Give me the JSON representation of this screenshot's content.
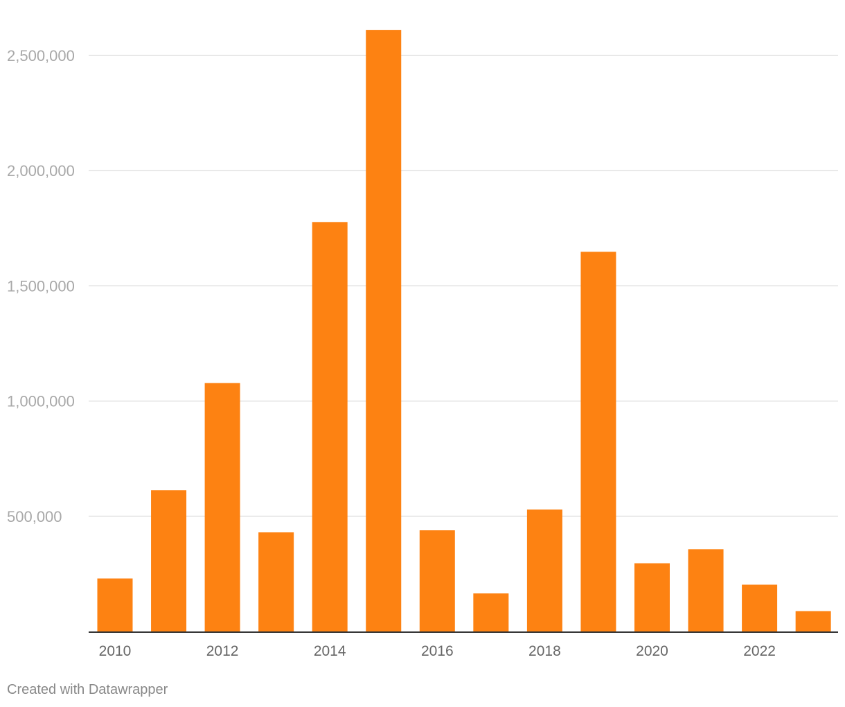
{
  "chart_data": {
    "type": "bar",
    "title": "",
    "xlabel": "",
    "ylabel": "",
    "categories": [
      "2010",
      "2011",
      "2012",
      "2013",
      "2014",
      "2015",
      "2016",
      "2017",
      "2018",
      "2019",
      "2020",
      "2021",
      "2022",
      "2023"
    ],
    "values": [
      230000,
      613000,
      1078000,
      430000,
      1777000,
      2611000,
      439000,
      165000,
      529000,
      1648000,
      296000,
      357000,
      203000,
      88000
    ],
    "ylim": [
      0,
      2600000
    ],
    "y_ticks": [
      500000,
      1000000,
      1500000,
      2000000,
      2500000
    ],
    "y_tick_labels": [
      "500,000",
      "1,000,000",
      "1,500,000",
      "2,000,000",
      "2,500,000"
    ],
    "x_tick_labels": [
      "2010",
      "2012",
      "2014",
      "2016",
      "2018",
      "2020",
      "2022"
    ],
    "grid": true,
    "bar_color": "#fd8212"
  },
  "footer": {
    "credit": "Created with Datawrapper"
  }
}
